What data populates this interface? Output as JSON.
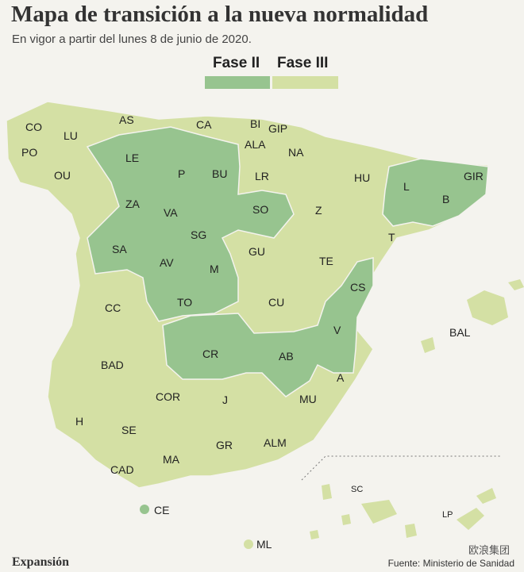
{
  "header": {
    "title": "Mapa de transición a la nueva normalidad",
    "subtitle": "En vigor a partir del lunes 8 de junio de 2020."
  },
  "legend": {
    "fase2_label": "Fase II",
    "fase3_label": "Fase III",
    "fase2_color": "#97c48f",
    "fase3_color": "#d4e0a4"
  },
  "provinces": {
    "CO": "CO",
    "LU": "LU",
    "AS": "AS",
    "CA": "CA",
    "BI": "BI",
    "GIP": "GIP",
    "PO": "PO",
    "LE": "LE",
    "ALA": "ALA",
    "NA": "NA",
    "BU": "BU",
    "P": "P",
    "OU": "OU",
    "LR": "LR",
    "HU": "HU",
    "L": "L",
    "GIR": "GIR",
    "ZA": "ZA",
    "VA": "VA",
    "SO": "SO",
    "Z": "Z",
    "B": "B",
    "SG": "SG",
    "SA": "SA",
    "T": "T",
    "GU": "GU",
    "AV": "AV",
    "M": "M",
    "TE": "TE",
    "CS": "CS",
    "CC": "CC",
    "TO": "TO",
    "CU": "CU",
    "BAL": "BAL",
    "V": "V",
    "BAD": "BAD",
    "CR": "CR",
    "AB": "AB",
    "A": "A",
    "COR": "COR",
    "J": "J",
    "MU": "MU",
    "H": "H",
    "SE": "SE",
    "GR": "GR",
    "ALM": "ALM",
    "MA": "MA",
    "CAD": "CAD",
    "SC": "SC",
    "LP": "LP",
    "CE": "CE",
    "ML": "ML"
  },
  "footer": {
    "brand": "Expansión",
    "source": "Fuente: Ministerio de Sanidad",
    "watermark": "欧浪集团"
  }
}
